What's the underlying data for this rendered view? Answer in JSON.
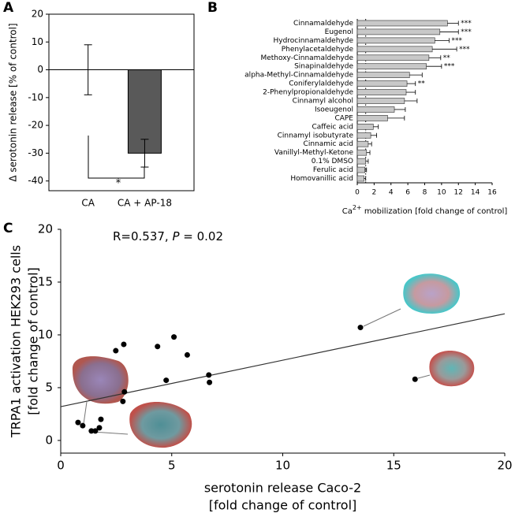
{
  "chart_data": [
    {
      "type": "bar",
      "panel_label": "A",
      "ylabel": "Δ serotonin release [% of control]",
      "categories": [
        "CA",
        "CA + AP-18"
      ],
      "values": [
        0,
        -30
      ],
      "errors": [
        9,
        5
      ],
      "color": "#595959",
      "ylim": [
        -43.5,
        20
      ],
      "yticks": [
        20,
        10,
        0,
        -10,
        -20,
        -30,
        -40
      ],
      "significance": "*"
    },
    {
      "type": "horizontal_bar",
      "panel_label": "B",
      "categories": [
        "Cinnamaldehyde",
        "Eugenol",
        "Hydrocinnamaldehyde",
        "Phenylacetaldehyde",
        "Methoxy-Cinnamaldehyde",
        "Sinapinaldehyde",
        "alpha-Methyl-Cinnamaldehyde",
        "Coniferylaldehyde",
        "2-Phenylpropionaldehyde",
        "Cinnamyl alcohol",
        "Isoeugenol",
        "CAPE",
        "Caffeic acid",
        "Cinnamyl isobutyrate",
        "Cinnamic acid",
        "Vanillyl-Methyl-Ketone",
        "0.1% DMSO",
        "Ferulic acid",
        "Homovanillic acid"
      ],
      "values": [
        10.7,
        9.8,
        9.2,
        8.9,
        8.5,
        8.2,
        6.2,
        5.9,
        5.8,
        5.6,
        4.4,
        3.6,
        1.9,
        1.6,
        1.3,
        1.1,
        1.0,
        0.9,
        0.8
      ],
      "errors": [
        1.3,
        2.2,
        1.7,
        2.9,
        1.4,
        1.8,
        1.5,
        1.0,
        1.1,
        1.5,
        1.3,
        2.0,
        0.6,
        0.7,
        0.4,
        0.4,
        0.3,
        0.2,
        0.2
      ],
      "annotations": [
        "***",
        "***",
        "***",
        "***",
        "**",
        "***",
        null,
        "**",
        null,
        null,
        null,
        null,
        null,
        null,
        null,
        null,
        null,
        null,
        null
      ],
      "color": "#c8c8c8",
      "xlim": [
        0,
        16
      ],
      "xticks": [
        0,
        2,
        4,
        6,
        8,
        10,
        12,
        14,
        16
      ],
      "reference_line": 1,
      "xlabel": [
        "Ca",
        "2+",
        " mobilization [fold change of control]"
      ]
    },
    {
      "type": "scatter",
      "panel_label": "C",
      "annotation": [
        "R=0.537, ",
        "P",
        " = 0.02"
      ],
      "x": [
        0.78,
        0.99,
        1.38,
        1.56,
        1.74,
        1.81,
        2.48,
        2.84,
        2.8,
        2.87,
        4.36,
        4.75,
        5.1,
        5.7,
        6.67,
        6.7,
        13.5,
        15.96
      ],
      "y": [
        1.7,
        1.4,
        0.9,
        0.9,
        1.2,
        2.0,
        8.5,
        9.1,
        3.7,
        4.6,
        8.9,
        5.7,
        9.8,
        8.1,
        6.2,
        5.5,
        10.7,
        5.8
      ],
      "color": "#000000",
      "trendline": {
        "x": [
          0,
          20
        ],
        "y": [
          3.2,
          12.0
        ]
      },
      "xlim": [
        0,
        20
      ],
      "ylim": [
        -1.2,
        20
      ],
      "xticks": [
        0,
        5,
        10,
        15,
        20
      ],
      "yticks": [
        0,
        5,
        10,
        15,
        20
      ],
      "xlabel": [
        "serotonin release Caco-2",
        "[fold change of control]"
      ],
      "ylabel": [
        "TRPA1 activation HEK293 cells",
        "[fold change of control]"
      ]
    }
  ]
}
